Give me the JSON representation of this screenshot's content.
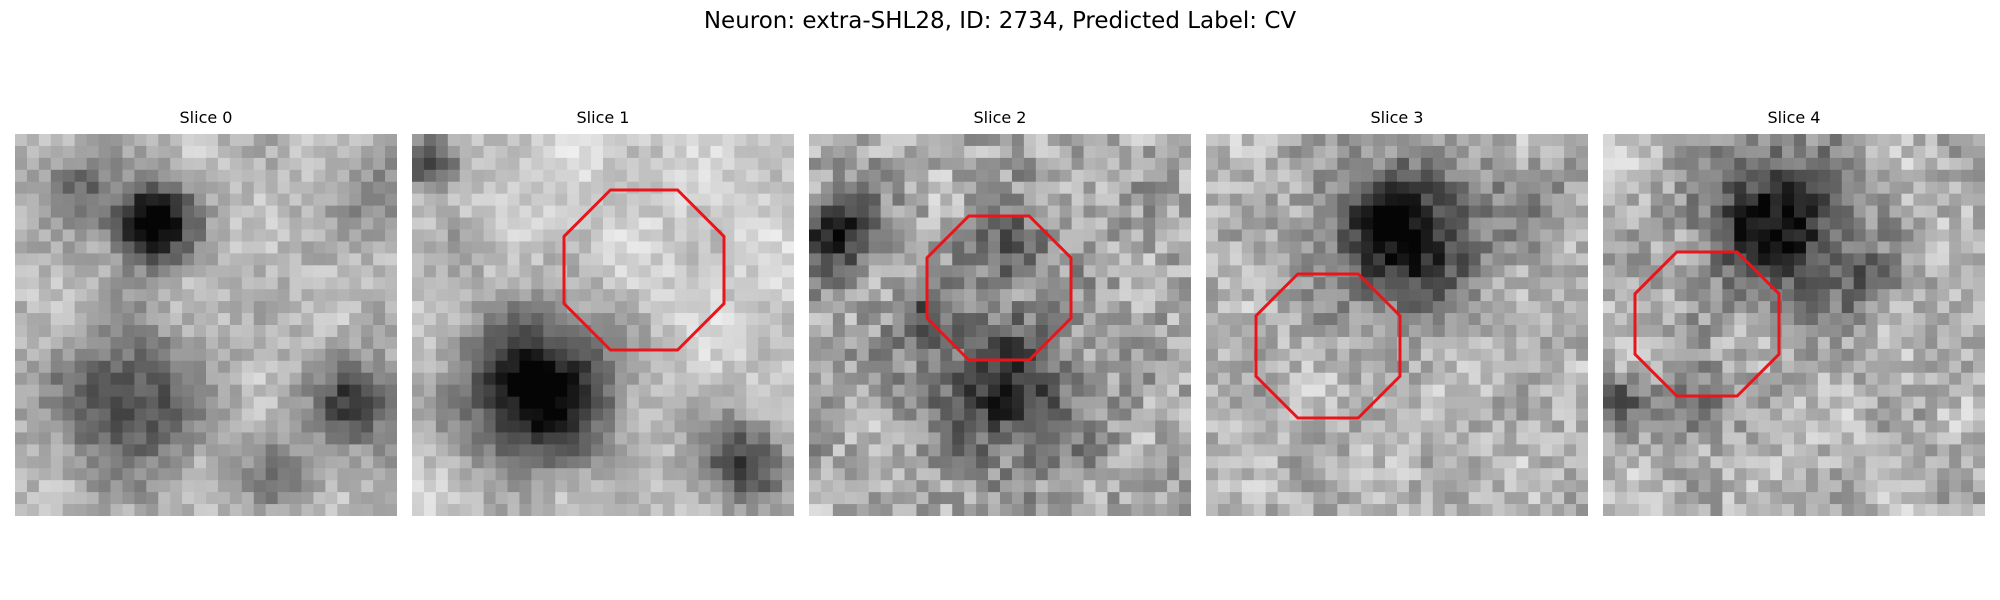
{
  "figure": {
    "title": "Neuron: extra-SHL28, ID: 2734, Predicted Label: CV"
  },
  "colors": {
    "outline": "#e8161b"
  },
  "panels": [
    {
      "title": "Slice 0",
      "has_outline": false
    },
    {
      "title": "Slice 1",
      "has_outline": true
    },
    {
      "title": "Slice 2",
      "has_outline": true
    },
    {
      "title": "Slice 3",
      "has_outline": true
    },
    {
      "title": "Slice 4",
      "has_outline": true
    }
  ]
}
